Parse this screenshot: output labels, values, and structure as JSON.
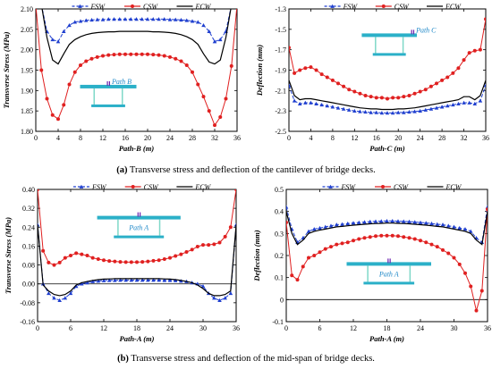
{
  "colors": {
    "fsw": "#1f3fcf",
    "csw": "#e02020",
    "ecw": "#000000",
    "deck": "#2bb0c8",
    "web": "#7fd8c8",
    "label": "#1e88c8",
    "mark": "#6a1fb0"
  },
  "captions": {
    "a_tag": "(a)",
    "a_text": " Transverse stress and deflection of the cantilever of bridge decks.",
    "b_tag": "(b)",
    "b_text": " Transverse stress and deflection of the mid-span of bridge decks."
  },
  "chart_data": [
    {
      "type": "line",
      "ylabel": "Transverse Stress (MPa)",
      "xlabel": "Path-B (m)",
      "xlim": [
        0,
        36
      ],
      "ylim": [
        1.8,
        2.1
      ],
      "xticks": [
        0,
        4,
        8,
        12,
        16,
        20,
        24,
        28,
        32,
        36
      ],
      "yticks": [
        1.8,
        1.85,
        1.9,
        1.95,
        2.0,
        2.05,
        2.1
      ],
      "ytick_labels": [
        "1.80",
        "1.85",
        "1.90",
        "1.95",
        "2.00",
        "2.05",
        "2.10"
      ],
      "legend": [
        "FSW",
        "CSW",
        "ECW"
      ],
      "inset_label": "Path B",
      "series": [
        {
          "name": "FSW",
          "x": [
            0,
            1,
            2,
            3,
            4,
            5,
            6,
            7,
            8,
            9,
            10,
            11,
            12,
            13,
            14,
            15,
            16,
            17,
            18,
            19,
            20,
            21,
            22,
            23,
            24,
            25,
            26,
            27,
            28,
            29,
            30,
            31,
            32,
            33,
            34,
            35,
            36
          ],
          "y": [
            2.11,
            2.11,
            2.045,
            2.025,
            2.02,
            2.045,
            2.06,
            2.068,
            2.07,
            2.072,
            2.073,
            2.074,
            2.074,
            2.075,
            2.075,
            2.075,
            2.075,
            2.075,
            2.075,
            2.075,
            2.075,
            2.075,
            2.075,
            2.075,
            2.074,
            2.074,
            2.073,
            2.072,
            2.07,
            2.068,
            2.06,
            2.045,
            2.02,
            2.025,
            2.045,
            2.11,
            2.11
          ]
        },
        {
          "name": "CSW",
          "x": [
            0,
            1,
            2,
            3,
            4,
            5,
            6,
            7,
            8,
            9,
            10,
            11,
            12,
            13,
            14,
            15,
            16,
            17,
            18,
            19,
            20,
            21,
            22,
            23,
            24,
            25,
            26,
            27,
            28,
            29,
            30,
            31,
            32,
            33,
            34,
            35,
            36
          ],
          "y": [
            2.11,
            1.95,
            1.88,
            1.84,
            1.83,
            1.865,
            1.915,
            1.945,
            1.962,
            1.972,
            1.978,
            1.982,
            1.985,
            1.987,
            1.988,
            1.989,
            1.989,
            1.989,
            1.989,
            1.989,
            1.989,
            1.988,
            1.987,
            1.985,
            1.982,
            1.978,
            1.972,
            1.962,
            1.945,
            1.915,
            1.885,
            1.85,
            1.815,
            1.835,
            1.88,
            1.96,
            2.11
          ]
        },
        {
          "name": "ECW",
          "x": [
            0,
            1,
            2,
            3,
            4,
            5,
            6,
            7,
            8,
            9,
            10,
            11,
            12,
            13,
            14,
            15,
            16,
            17,
            18,
            19,
            20,
            21,
            22,
            23,
            24,
            25,
            26,
            27,
            28,
            29,
            30,
            31,
            32,
            33,
            34,
            35,
            36
          ],
          "y": [
            2.11,
            2.11,
            2.03,
            1.975,
            1.965,
            1.99,
            2.013,
            2.025,
            2.032,
            2.037,
            2.04,
            2.042,
            2.043,
            2.044,
            2.044,
            2.045,
            2.045,
            2.045,
            2.045,
            2.045,
            2.045,
            2.044,
            2.044,
            2.043,
            2.042,
            2.04,
            2.037,
            2.032,
            2.025,
            2.013,
            1.99,
            1.97,
            1.965,
            1.975,
            2.03,
            2.11,
            2.11
          ]
        }
      ]
    },
    {
      "type": "line",
      "ylabel": "Deflection (mm)",
      "xlabel": "Path-C (m)",
      "xlim": [
        0,
        36
      ],
      "ylim": [
        -2.5,
        -1.3
      ],
      "xticks": [
        0,
        4,
        8,
        12,
        16,
        20,
        24,
        28,
        32,
        36
      ],
      "yticks": [
        -2.5,
        -2.3,
        -2.1,
        -1.9,
        -1.7,
        -1.5,
        -1.3
      ],
      "ytick_labels": [
        "-2.5",
        "-2.3",
        "-2.1",
        "-1.9",
        "-1.7",
        "-1.5",
        "-1.3"
      ],
      "legend": [
        "FSW",
        "CSW",
        "ECW"
      ],
      "inset_label": "Path C",
      "series": [
        {
          "name": "FSW",
          "x": [
            0,
            1,
            2,
            3,
            4,
            5,
            6,
            7,
            8,
            9,
            10,
            11,
            12,
            13,
            14,
            15,
            16,
            17,
            18,
            19,
            20,
            21,
            22,
            23,
            24,
            25,
            26,
            27,
            28,
            29,
            30,
            31,
            32,
            33,
            34,
            35,
            36
          ],
          "y": [
            -2.05,
            -2.2,
            -2.23,
            -2.22,
            -2.22,
            -2.23,
            -2.24,
            -2.25,
            -2.26,
            -2.27,
            -2.28,
            -2.29,
            -2.3,
            -2.305,
            -2.31,
            -2.315,
            -2.315,
            -2.32,
            -2.32,
            -2.32,
            -2.315,
            -2.315,
            -2.31,
            -2.305,
            -2.3,
            -2.29,
            -2.28,
            -2.27,
            -2.26,
            -2.25,
            -2.24,
            -2.23,
            -2.22,
            -2.22,
            -2.23,
            -2.2,
            -2.05
          ]
        },
        {
          "name": "CSW",
          "x": [
            0,
            1,
            2,
            3,
            4,
            5,
            6,
            7,
            8,
            9,
            10,
            11,
            12,
            13,
            14,
            15,
            16,
            17,
            18,
            19,
            20,
            21,
            22,
            23,
            24,
            25,
            26,
            27,
            28,
            29,
            30,
            31,
            32,
            33,
            34,
            35,
            36
          ],
          "y": [
            -1.68,
            -1.93,
            -1.9,
            -1.88,
            -1.87,
            -1.9,
            -1.94,
            -1.97,
            -2.0,
            -2.03,
            -2.06,
            -2.09,
            -2.11,
            -2.13,
            -2.15,
            -2.16,
            -2.17,
            -2.17,
            -2.18,
            -2.17,
            -2.17,
            -2.16,
            -2.15,
            -2.13,
            -2.11,
            -2.09,
            -2.06,
            -2.03,
            -2.0,
            -1.97,
            -1.93,
            -1.88,
            -1.8,
            -1.73,
            -1.71,
            -1.7,
            -1.4
          ]
        },
        {
          "name": "ECW",
          "x": [
            0,
            1,
            2,
            3,
            4,
            5,
            6,
            7,
            8,
            9,
            10,
            11,
            12,
            13,
            14,
            15,
            16,
            17,
            18,
            19,
            20,
            21,
            22,
            23,
            24,
            25,
            26,
            27,
            28,
            29,
            30,
            31,
            32,
            33,
            34,
            35,
            36
          ],
          "y": [
            -2.0,
            -2.15,
            -2.19,
            -2.18,
            -2.18,
            -2.19,
            -2.2,
            -2.21,
            -2.22,
            -2.23,
            -2.24,
            -2.25,
            -2.26,
            -2.27,
            -2.275,
            -2.28,
            -2.28,
            -2.285,
            -2.285,
            -2.285,
            -2.28,
            -2.28,
            -2.275,
            -2.27,
            -2.26,
            -2.25,
            -2.24,
            -2.23,
            -2.22,
            -2.21,
            -2.2,
            -2.19,
            -2.16,
            -2.16,
            -2.19,
            -2.15,
            -2.0
          ]
        }
      ]
    },
    {
      "type": "line",
      "ylabel": "Transverse Stress (MPa)",
      "xlabel": "Path-A (m)",
      "xlim": [
        0,
        36
      ],
      "ylim": [
        -0.16,
        0.4
      ],
      "xticks": [
        0,
        6,
        12,
        18,
        24,
        30,
        36
      ],
      "yticks": [
        -0.16,
        -0.08,
        0,
        0.08,
        0.16,
        0.24,
        0.32,
        0.4
      ],
      "ytick_labels": [
        "-0.16",
        "-0.08",
        "0.00",
        "0.08",
        "0.16",
        "0.24",
        "0.32",
        "0.40"
      ],
      "legend": [
        "FSW",
        "CSW",
        "ECW"
      ],
      "inset_label": "Path A",
      "series": [
        {
          "name": "FSW",
          "x": [
            0,
            1,
            2,
            3,
            4,
            5,
            6,
            7,
            8,
            9,
            10,
            11,
            12,
            13,
            14,
            15,
            16,
            17,
            18,
            19,
            20,
            21,
            22,
            23,
            24,
            25,
            26,
            27,
            28,
            29,
            30,
            31,
            32,
            33,
            34,
            35,
            36
          ],
          "y": [
            0.25,
            0.0,
            -0.04,
            -0.06,
            -0.07,
            -0.06,
            -0.04,
            -0.01,
            0.0,
            0.005,
            0.01,
            0.012,
            0.014,
            0.015,
            0.015,
            0.016,
            0.016,
            0.016,
            0.016,
            0.016,
            0.016,
            0.016,
            0.016,
            0.015,
            0.015,
            0.014,
            0.012,
            0.01,
            0.005,
            0.0,
            -0.01,
            -0.04,
            -0.06,
            -0.07,
            -0.06,
            -0.04,
            0.25
          ]
        },
        {
          "name": "CSW",
          "x": [
            0,
            1,
            2,
            3,
            4,
            5,
            6,
            7,
            8,
            9,
            10,
            11,
            12,
            13,
            14,
            15,
            16,
            17,
            18,
            19,
            20,
            21,
            22,
            23,
            24,
            25,
            26,
            27,
            28,
            29,
            30,
            31,
            32,
            33,
            34,
            35,
            36
          ],
          "y": [
            0.4,
            0.14,
            0.09,
            0.08,
            0.09,
            0.11,
            0.12,
            0.13,
            0.125,
            0.12,
            0.11,
            0.105,
            0.1,
            0.097,
            0.095,
            0.093,
            0.092,
            0.092,
            0.092,
            0.093,
            0.095,
            0.098,
            0.1,
            0.105,
            0.11,
            0.118,
            0.125,
            0.135,
            0.145,
            0.158,
            0.165,
            0.165,
            0.168,
            0.175,
            0.2,
            0.24,
            0.4
          ]
        },
        {
          "name": "ECW",
          "x": [
            0,
            1,
            2,
            3,
            4,
            5,
            6,
            7,
            8,
            9,
            10,
            11,
            12,
            13,
            14,
            15,
            16,
            17,
            18,
            19,
            20,
            21,
            22,
            23,
            24,
            25,
            26,
            27,
            28,
            29,
            30,
            31,
            32,
            33,
            34,
            35,
            36
          ],
          "y": [
            0.25,
            -0.005,
            -0.03,
            -0.045,
            -0.05,
            -0.045,
            -0.03,
            -0.005,
            0.005,
            0.01,
            0.015,
            0.018,
            0.02,
            0.021,
            0.022,
            0.022,
            0.022,
            0.022,
            0.022,
            0.022,
            0.022,
            0.022,
            0.022,
            0.021,
            0.02,
            0.018,
            0.015,
            0.01,
            0.005,
            -0.005,
            -0.02,
            -0.04,
            -0.05,
            -0.05,
            -0.045,
            -0.03,
            0.25
          ]
        }
      ]
    },
    {
      "type": "line",
      "ylabel": "Deflection (mm)",
      "xlabel": "Path-A (m)",
      "xlim": [
        0,
        36
      ],
      "ylim": [
        -0.1,
        0.5
      ],
      "xticks": [
        0,
        6,
        12,
        18,
        24,
        30,
        36
      ],
      "yticks": [
        -0.1,
        0,
        0.1,
        0.2,
        0.3,
        0.4,
        0.5
      ],
      "ytick_labels": [
        "-0.1",
        "0",
        "0.1",
        "0.2",
        "0.3",
        "0.4",
        "0.5"
      ],
      "legend": [
        "FSW",
        "CSW",
        "ECW"
      ],
      "inset_label": "Path A",
      "series": [
        {
          "name": "FSW",
          "x": [
            0,
            1,
            2,
            3,
            4,
            5,
            6,
            7,
            8,
            9,
            10,
            11,
            12,
            13,
            14,
            15,
            16,
            17,
            18,
            19,
            20,
            21,
            22,
            23,
            24,
            25,
            26,
            27,
            28,
            29,
            30,
            31,
            32,
            33,
            34,
            35,
            36
          ],
          "y": [
            0.42,
            0.32,
            0.26,
            0.28,
            0.31,
            0.32,
            0.325,
            0.33,
            0.335,
            0.34,
            0.342,
            0.345,
            0.348,
            0.35,
            0.352,
            0.354,
            0.355,
            0.356,
            0.357,
            0.357,
            0.356,
            0.355,
            0.354,
            0.352,
            0.35,
            0.348,
            0.345,
            0.342,
            0.34,
            0.335,
            0.33,
            0.325,
            0.32,
            0.31,
            0.28,
            0.26,
            0.42
          ]
        },
        {
          "name": "CSW",
          "x": [
            0,
            1,
            2,
            3,
            4,
            5,
            6,
            7,
            8,
            9,
            10,
            11,
            12,
            13,
            14,
            15,
            16,
            17,
            18,
            19,
            20,
            21,
            22,
            23,
            24,
            25,
            26,
            27,
            28,
            29,
            30,
            31,
            32,
            33,
            34,
            35,
            36
          ],
          "y": [
            0.35,
            0.11,
            0.09,
            0.15,
            0.19,
            0.2,
            0.215,
            0.23,
            0.24,
            0.25,
            0.255,
            0.26,
            0.268,
            0.275,
            0.28,
            0.284,
            0.288,
            0.29,
            0.29,
            0.29,
            0.288,
            0.284,
            0.28,
            0.275,
            0.268,
            0.26,
            0.25,
            0.24,
            0.225,
            0.21,
            0.19,
            0.16,
            0.12,
            0.06,
            -0.05,
            0.04,
            0.41
          ]
        },
        {
          "name": "ECW",
          "x": [
            0,
            1,
            2,
            3,
            4,
            5,
            6,
            7,
            8,
            9,
            10,
            11,
            12,
            13,
            14,
            15,
            16,
            17,
            18,
            19,
            20,
            21,
            22,
            23,
            24,
            25,
            26,
            27,
            28,
            29,
            30,
            31,
            32,
            33,
            34,
            35,
            36
          ],
          "y": [
            0.4,
            0.3,
            0.25,
            0.27,
            0.3,
            0.31,
            0.315,
            0.32,
            0.325,
            0.33,
            0.332,
            0.335,
            0.338,
            0.34,
            0.342,
            0.344,
            0.345,
            0.346,
            0.347,
            0.347,
            0.346,
            0.345,
            0.344,
            0.342,
            0.34,
            0.338,
            0.335,
            0.332,
            0.33,
            0.325,
            0.32,
            0.315,
            0.31,
            0.3,
            0.27,
            0.25,
            0.4
          ]
        }
      ]
    }
  ]
}
